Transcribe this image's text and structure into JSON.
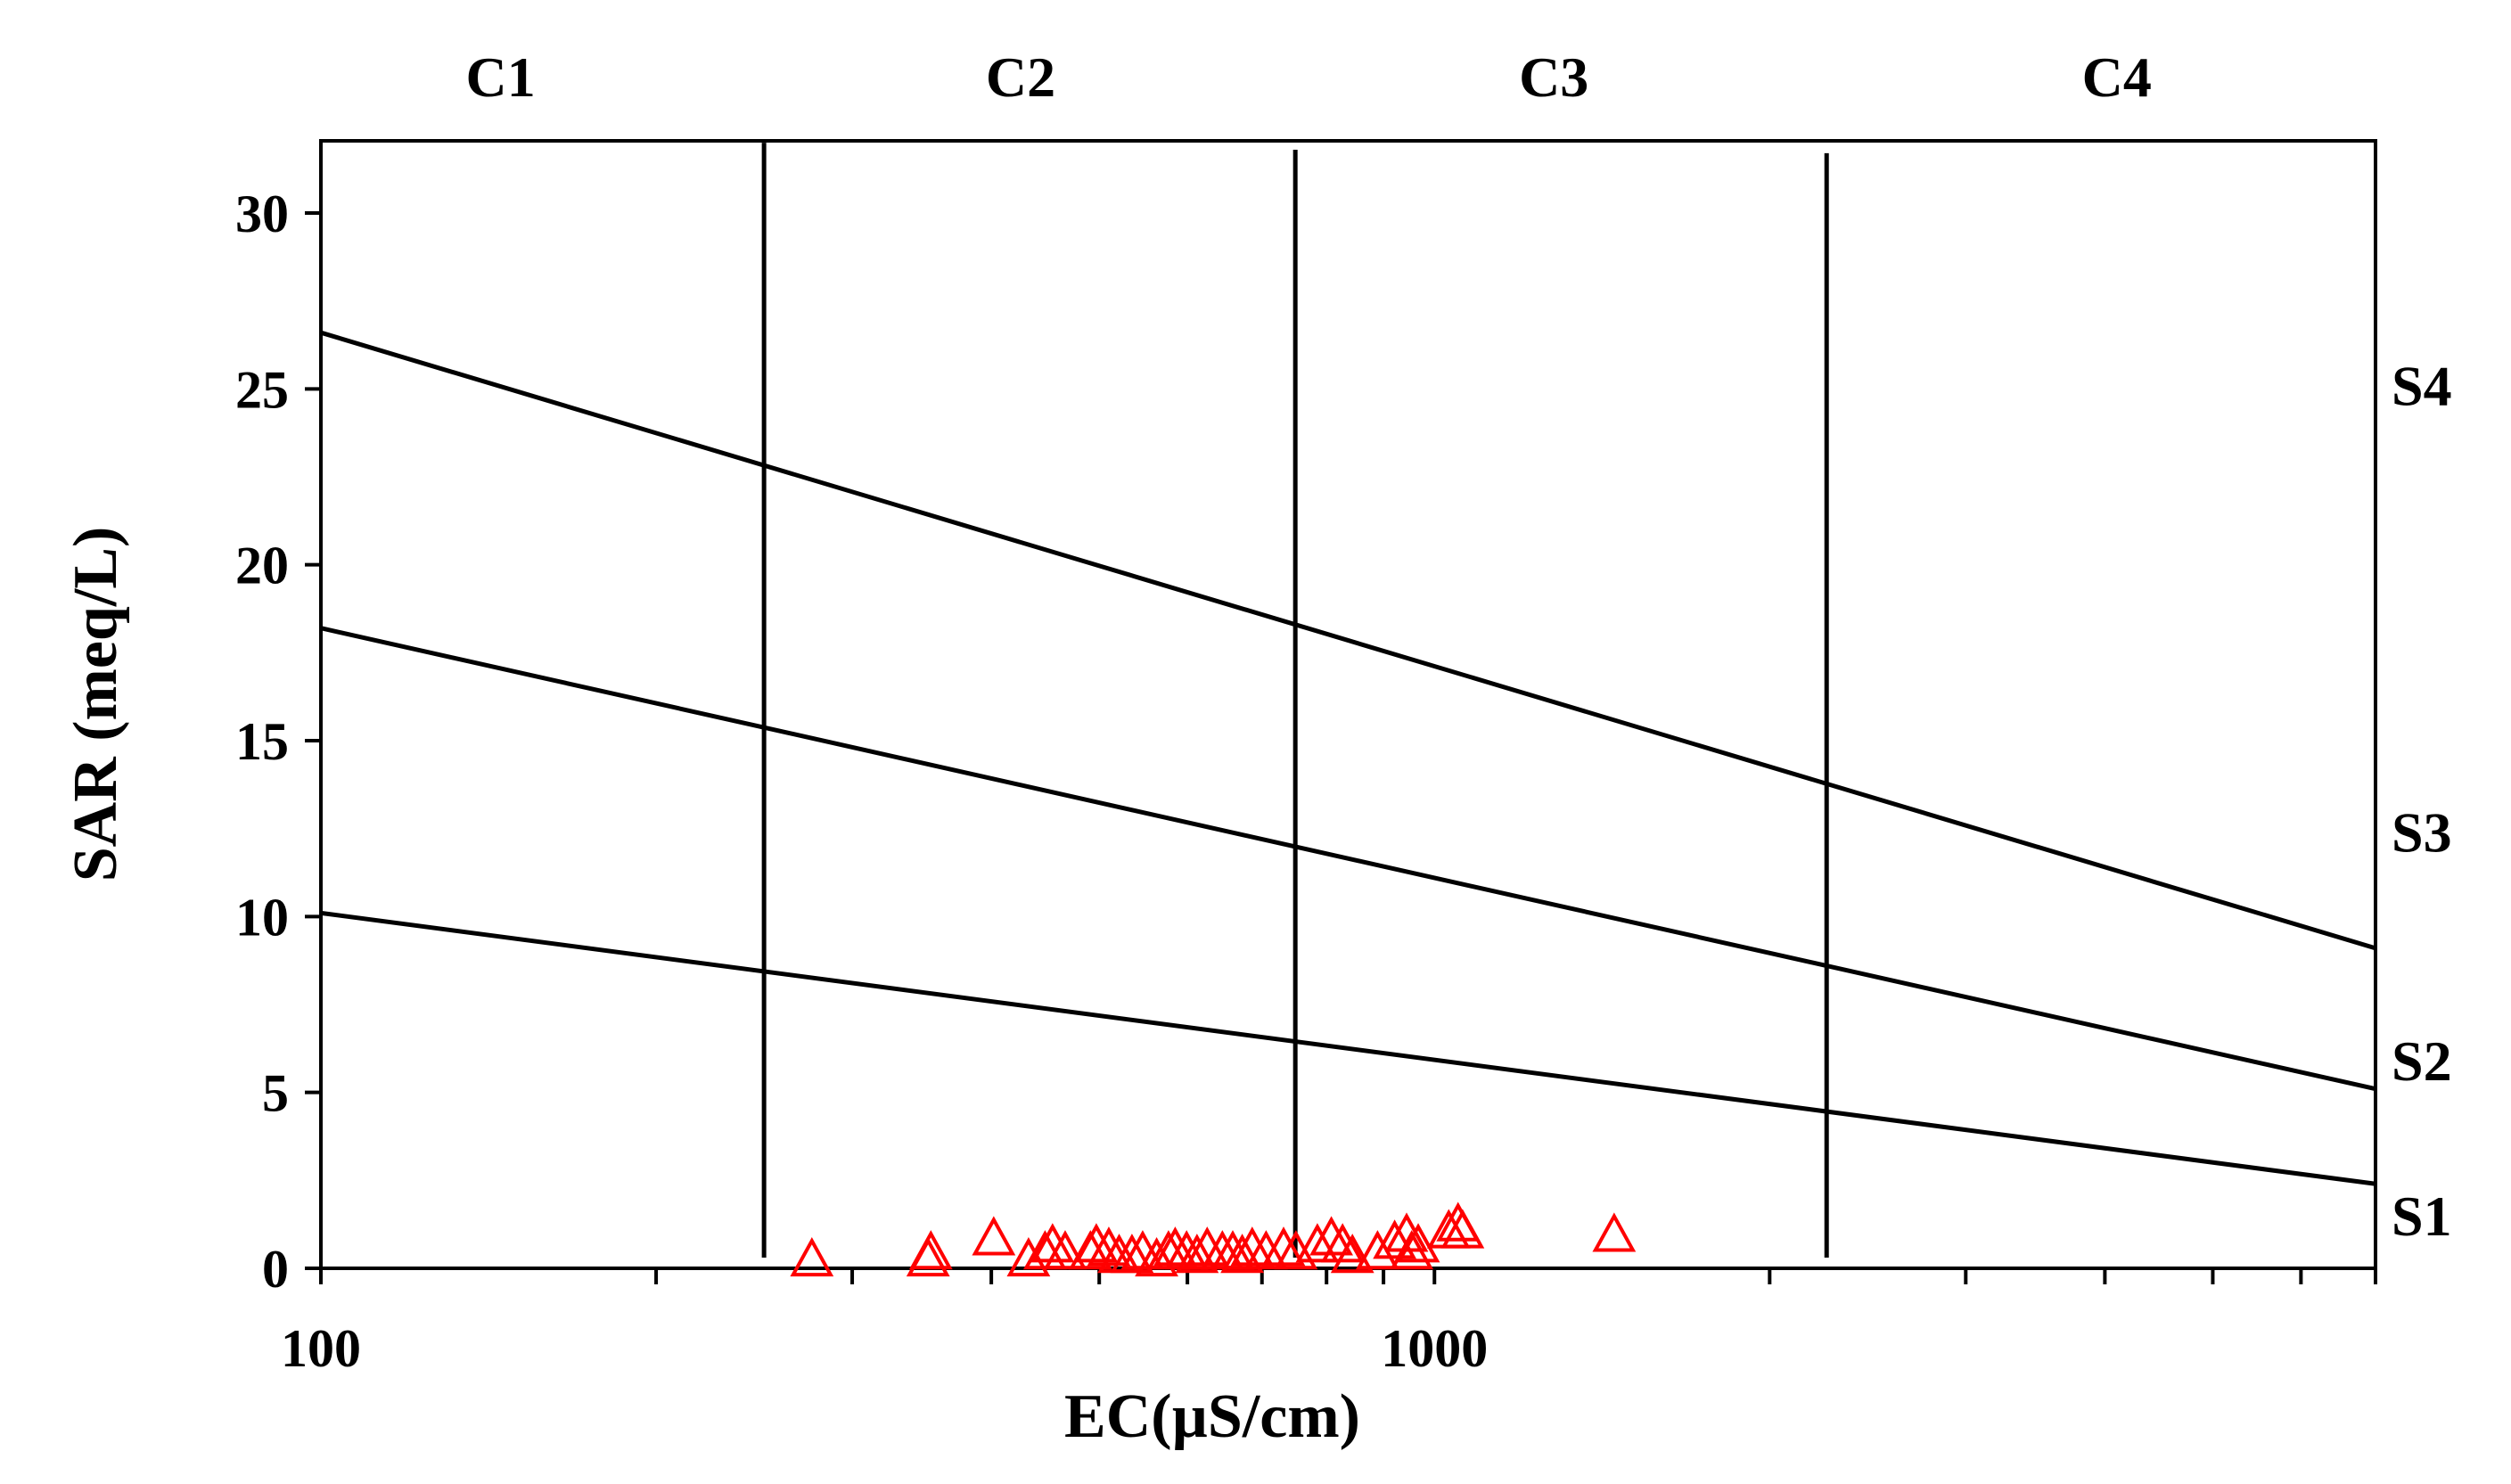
{
  "chart_data": {
    "type": "scatter",
    "title": "",
    "xlabel": "EC(µS/cm)",
    "ylabel": "SAR (meq/L)",
    "x_scale": "log",
    "xlim": [
      100,
      7000
    ],
    "ylim": [
      0,
      32
    ],
    "x_ticks": [
      {
        "value": 100,
        "label": "100"
      },
      {
        "value": 1000,
        "label": "1000"
      }
    ],
    "x_minor_ticks": [
      200,
      300,
      400,
      500,
      600,
      700,
      800,
      900,
      2000,
      3000,
      4000,
      5000,
      6000,
      7000
    ],
    "y_ticks": [
      {
        "value": 0,
        "label": "0"
      },
      {
        "value": 5,
        "label": "5"
      },
      {
        "value": 10,
        "label": "10"
      },
      {
        "value": 15,
        "label": "15"
      },
      {
        "value": 20,
        "label": "20"
      },
      {
        "value": 25,
        "label": "25"
      },
      {
        "value": 30,
        "label": "30"
      }
    ],
    "grid": false,
    "zone_dividers": [
      {
        "x": 250,
        "y_top": 32
      },
      {
        "x": 750,
        "y_top": 31.8
      },
      {
        "x": 2250,
        "y_top": 31.7
      }
    ],
    "salinity_zones": [
      {
        "label": "C1",
        "x": 145
      },
      {
        "label": "C2",
        "x": 425
      },
      {
        "label": "C3",
        "x": 1280
      },
      {
        "label": "C4",
        "x": 4100
      }
    ],
    "boundary_lines": [
      {
        "name": "S1/S2",
        "points": [
          [
            100,
            10.1
          ],
          [
            7000,
            2.4
          ]
        ]
      },
      {
        "name": "S2/S3",
        "points": [
          [
            100,
            18.2
          ],
          [
            7000,
            5.1
          ]
        ]
      },
      {
        "name": "S3/S4",
        "points": [
          [
            100,
            26.6
          ],
          [
            7000,
            9.1
          ]
        ]
      }
    ],
    "sodium_zones": [
      {
        "label": "S1",
        "y": 1.5
      },
      {
        "label": "S2",
        "y": 5.9
      },
      {
        "label": "S3",
        "y": 12.4
      },
      {
        "label": "S4",
        "y": 25.1
      }
    ],
    "series": [
      {
        "marker": "triangle-open",
        "color": "#ff0000",
        "points": [
          [
            276,
            0.3
          ],
          [
            351,
            0.3
          ],
          [
            353,
            0.5
          ],
          [
            402,
            0.9
          ],
          [
            432,
            0.3
          ],
          [
            447,
            0.5
          ],
          [
            454,
            0.7
          ],
          [
            466,
            0.5
          ],
          [
            491,
            0.5
          ],
          [
            497,
            0.7
          ],
          [
            510,
            0.6
          ],
          [
            521,
            0.4
          ],
          [
            535,
            0.4
          ],
          [
            547,
            0.5
          ],
          [
            563,
            0.3
          ],
          [
            577,
            0.5
          ],
          [
            585,
            0.6
          ],
          [
            599,
            0.5
          ],
          [
            612,
            0.4
          ],
          [
            625,
            0.6
          ],
          [
            645,
            0.5
          ],
          [
            659,
            0.5
          ],
          [
            672,
            0.4
          ],
          [
            686,
            0.6
          ],
          [
            706,
            0.5
          ],
          [
            732,
            0.6
          ],
          [
            751,
            0.5
          ],
          [
            785,
            0.7
          ],
          [
            808,
            0.9
          ],
          [
            827,
            0.7
          ],
          [
            844,
            0.4
          ],
          [
            889,
            0.5
          ],
          [
            921,
            0.8
          ],
          [
            944,
            1.0
          ],
          [
            954,
            0.5
          ],
          [
            967,
            0.7
          ],
          [
            1030,
            1.1
          ],
          [
            1050,
            1.3
          ],
          [
            1060,
            1.1
          ],
          [
            1450,
            1.0
          ]
        ]
      }
    ]
  }
}
